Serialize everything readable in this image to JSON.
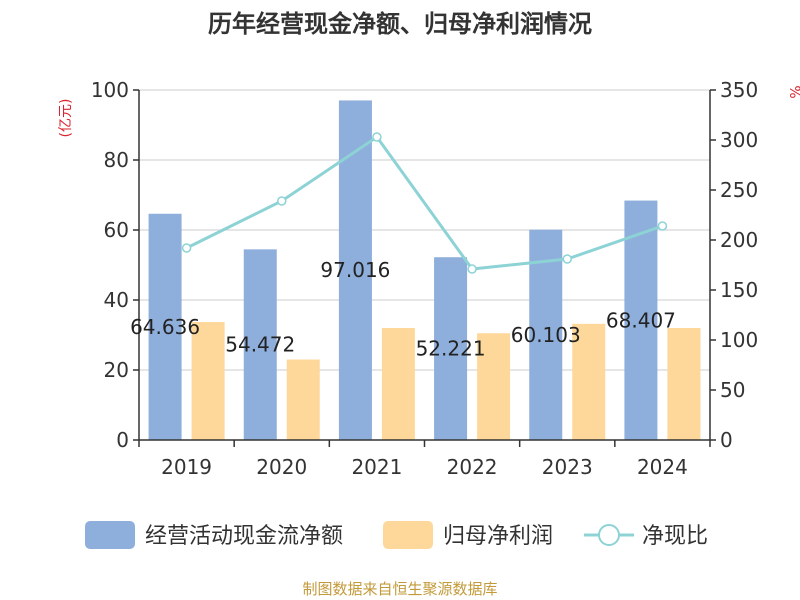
{
  "chart_data": {
    "type": "bar",
    "title": "历年经营现金净额、归母净利润情况",
    "left_unit": "(亿元)",
    "right_unit": "%",
    "categories": [
      "2019",
      "2020",
      "2021",
      "2022",
      "2023",
      "2024"
    ],
    "ylim_left": [
      0,
      100
    ],
    "ylim_right": [
      0,
      350
    ],
    "left_ticks": [
      "0",
      "20",
      "40",
      "60",
      "80",
      "100"
    ],
    "right_ticks": [
      "0",
      "50",
      "100",
      "150",
      "200",
      "250",
      "300",
      "350"
    ],
    "series": [
      {
        "name": "经营活动现金流净额",
        "type": "bar",
        "axis": "left",
        "color": "#8eaedb",
        "values": [
          64.636,
          54.472,
          97.016,
          52.221,
          60.103,
          68.407
        ],
        "labels": [
          "64.636",
          "54.472",
          "97.016",
          "52.221",
          "60.103",
          "68.407"
        ]
      },
      {
        "name": "归母净利润",
        "type": "bar",
        "axis": "left",
        "color": "#fdd89a",
        "values": [
          33.7,
          23.0,
          32.0,
          30.5,
          33.2,
          32.0
        ]
      },
      {
        "name": "净现比",
        "type": "line",
        "axis": "right",
        "color": "#8dd3d6",
        "values": [
          192,
          239,
          303,
          171,
          181,
          214
        ]
      }
    ],
    "legend": {
      "position": "bottom",
      "items": [
        "经营活动现金流净额",
        "归母净利润",
        "净现比"
      ]
    }
  },
  "source": "制图数据来自恒生聚源数据库",
  "colors": {
    "unit_red": "#d9232e",
    "source_gold": "#c39a3a",
    "axis": "#333333",
    "grid": "#cccccc"
  }
}
